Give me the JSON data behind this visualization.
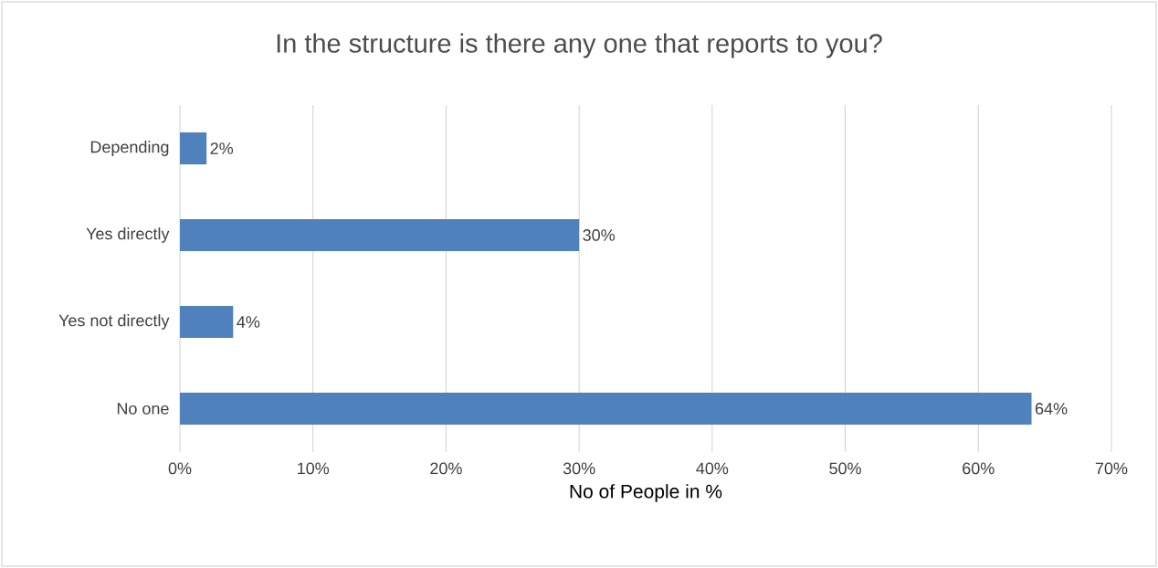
{
  "chart_data": {
    "type": "bar",
    "orientation": "horizontal",
    "title": "In the structure is there any one that reports to you?",
    "xlabel": "No of People in %",
    "categories": [
      "Depending",
      "Yes directly",
      "Yes not directly",
      "No one"
    ],
    "values": [
      2,
      30,
      4,
      64
    ],
    "value_labels": [
      "2%",
      "30%",
      "4%",
      "64%"
    ],
    "color": "#4f81bd",
    "xlim": [
      0,
      70
    ],
    "xticks": [
      {
        "value": 0,
        "label": "0%"
      },
      {
        "value": 10,
        "label": "10%"
      },
      {
        "value": 20,
        "label": "20%"
      },
      {
        "value": 30,
        "label": "30%"
      },
      {
        "value": 40,
        "label": "40%"
      },
      {
        "value": 50,
        "label": "50%"
      },
      {
        "value": 60,
        "label": "60%"
      },
      {
        "value": 70,
        "label": "70%"
      }
    ],
    "grid": "x"
  }
}
